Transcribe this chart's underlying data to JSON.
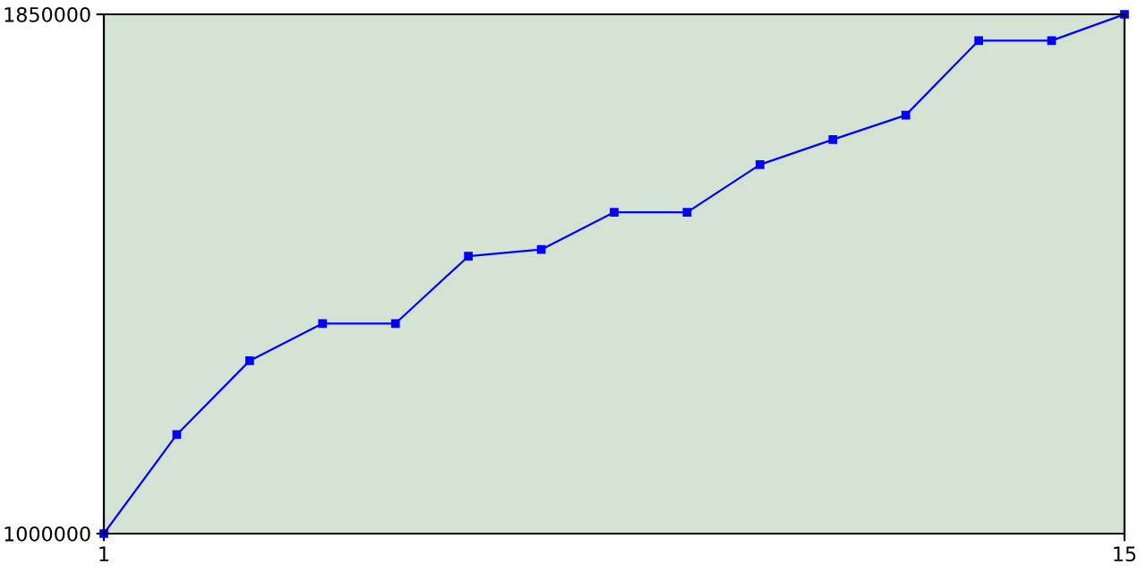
{
  "chart_data": {
    "type": "line",
    "x": [
      1,
      2,
      3,
      4,
      5,
      6,
      7,
      8,
      9,
      10,
      11,
      12,
      13,
      14,
      15
    ],
    "series": [
      {
        "color": "#0000ff",
        "values": [
          1000000,
          1162000,
          1283000,
          1344000,
          1344000,
          1454000,
          1465000,
          1526000,
          1526000,
          1604000,
          1645000,
          1685000,
          1807000,
          1807000,
          1850000
        ]
      }
    ],
    "xlim": [
      1,
      15
    ],
    "ylim": [
      1000000,
      1850000
    ],
    "xticks": [
      1,
      15
    ],
    "yticks": [
      1000000,
      1850000
    ],
    "marker": "square",
    "line_style": "solid",
    "grid": false,
    "legend": false
  }
}
